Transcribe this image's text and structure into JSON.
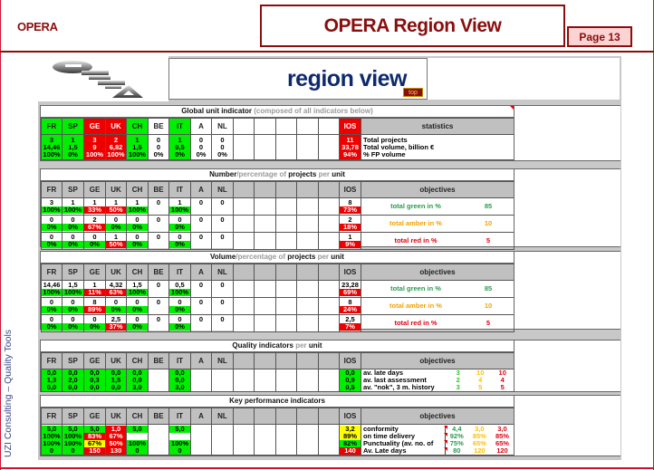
{
  "header": {
    "brand": "OPERA",
    "title": "OPERA Region View",
    "page": "Page 13"
  },
  "sidebar_credit": "UZI Consulting – Quality Tools",
  "banner": {
    "logo_alt": "OPERA logo",
    "title": "region view",
    "top_button": "top"
  },
  "units": [
    "FR",
    "SP",
    "GE",
    "UK",
    "CH",
    "BE",
    "IT",
    "A",
    "NL",
    "",
    "",
    "",
    "",
    ""
  ],
  "ios_label": "IOS",
  "global": {
    "title_bold": "Global unit indicator",
    "title_dim": " (composed of all indicators below)",
    "stats_header": "statistics",
    "header_colors": [
      "g",
      "g",
      "r",
      "r",
      "g",
      "w",
      "g",
      "w",
      "w",
      "w",
      "w",
      "w",
      "w",
      "w"
    ],
    "rows": [
      [
        "3",
        "1",
        "3",
        "2",
        "1",
        "0",
        "1",
        "0",
        "0",
        "",
        "",
        "",
        "",
        ""
      ],
      [
        "14,46",
        "1,5",
        "9",
        "6,82",
        "1,5",
        "0",
        "0,5",
        "0",
        "0",
        "",
        "",
        "",
        "",
        ""
      ],
      [
        "100%",
        "0%",
        "100%",
        "100%",
        "100%",
        "0%",
        "0%",
        "0%",
        "0%",
        "",
        "",
        "",
        "",
        ""
      ]
    ],
    "cell_colors": [
      "g",
      "g",
      "r",
      "r",
      "g",
      "w",
      "g",
      "w",
      "w",
      "w",
      "w",
      "w",
      "w",
      "w"
    ],
    "ios": [
      "11",
      "33,78",
      "94%"
    ],
    "stats_labels": [
      "Total projects",
      "Total volume, billion €",
      "% FP volume"
    ]
  },
  "number": {
    "title_parts": [
      "Number",
      "/percentage of ",
      "projects",
      " per ",
      "unit"
    ],
    "objectives_header": "objectives",
    "rows": [
      {
        "count": [
          "3",
          "1",
          "1",
          "1",
          "1",
          "0",
          "1",
          "0",
          "0"
        ],
        "pct": [
          "100%",
          "100%",
          "33%",
          "50%",
          "100%",
          "",
          "100%",
          "",
          ""
        ],
        "pct_colors": [
          "g",
          "g",
          "r",
          "r",
          "g",
          "w",
          "g",
          "w",
          "w"
        ]
      },
      {
        "count": [
          "0",
          "0",
          "2",
          "0",
          "0",
          "0",
          "0",
          "0",
          "0"
        ],
        "pct": [
          "0%",
          "0%",
          "67%",
          "0%",
          "0%",
          "",
          "0%",
          "",
          ""
        ],
        "pct_colors": [
          "g",
          "g",
          "r",
          "g",
          "g",
          "w",
          "g",
          "w",
          "w"
        ]
      },
      {
        "count": [
          "0",
          "0",
          "0",
          "1",
          "0",
          "0",
          "0",
          "0",
          "0"
        ],
        "pct": [
          "0%",
          "0%",
          "0%",
          "50%",
          "0%",
          "",
          "0%",
          "",
          ""
        ],
        "pct_colors": [
          "g",
          "g",
          "g",
          "r",
          "g",
          "w",
          "g",
          "w",
          "w"
        ]
      }
    ],
    "ios": [
      {
        "v": "8",
        "p": "73%"
      },
      {
        "v": "2",
        "p": "18%"
      },
      {
        "v": "1",
        "p": "9%"
      }
    ],
    "objectives": [
      {
        "label": "total green in %",
        "value": "85",
        "tone": "g"
      },
      {
        "label": "total amber in %",
        "value": "10",
        "tone": "a"
      },
      {
        "label": "total red in %",
        "value": "5",
        "tone": "r"
      }
    ]
  },
  "volume": {
    "title_parts": [
      "Volume",
      "/percentage of ",
      "projects",
      " per ",
      "unit"
    ],
    "objectives_header": "objectives",
    "rows": [
      {
        "count": [
          "14,46",
          "1,5",
          "1",
          "4,32",
          "1,5",
          "0",
          "0,5",
          "0",
          "0"
        ],
        "pct": [
          "100%",
          "100%",
          "11%",
          "63%",
          "100%",
          "",
          "100%",
          "",
          ""
        ],
        "pct_colors": [
          "g",
          "g",
          "r",
          "r",
          "g",
          "w",
          "g",
          "w",
          "w"
        ]
      },
      {
        "count": [
          "0",
          "0",
          "8",
          "0",
          "0",
          "0",
          "0",
          "0",
          "0"
        ],
        "pct": [
          "0%",
          "0%",
          "89%",
          "0%",
          "0%",
          "",
          "0%",
          "",
          ""
        ],
        "pct_colors": [
          "g",
          "g",
          "r",
          "g",
          "g",
          "w",
          "g",
          "w",
          "w"
        ]
      },
      {
        "count": [
          "0",
          "0",
          "0",
          "2,5",
          "0",
          "0",
          "0",
          "0",
          "0"
        ],
        "pct": [
          "0%",
          "0%",
          "0%",
          "37%",
          "0%",
          "",
          "0%",
          "",
          ""
        ],
        "pct_colors": [
          "g",
          "g",
          "g",
          "r",
          "g",
          "w",
          "g",
          "w",
          "w"
        ]
      }
    ],
    "ios": [
      {
        "v": "23,28",
        "p": "69%"
      },
      {
        "v": "8",
        "p": "24%"
      },
      {
        "v": "2,5",
        "p": "7%"
      }
    ],
    "objectives": [
      {
        "label": "total green in %",
        "value": "85",
        "tone": "g"
      },
      {
        "label": "total amber in %",
        "value": "10",
        "tone": "a"
      },
      {
        "label": "total red in %",
        "value": "5",
        "tone": "r"
      }
    ]
  },
  "quality": {
    "title_parts": [
      "Quality indicators",
      " per ",
      "unit"
    ],
    "objectives_header": "objectives",
    "cols": [
      [
        "0,0",
        "1,3",
        "0,0"
      ],
      [
        "0,0",
        "2,0",
        "0,0"
      ],
      [
        "0,0",
        "0,3",
        "0,0"
      ],
      [
        "0,0",
        "1,5",
        "0,0"
      ],
      [
        "0,0",
        "0,0",
        "3,0"
      ],
      [],
      [
        "0,0",
        "0,0",
        "3,0"
      ],
      [],
      []
    ],
    "col_colors": [
      "g",
      "g",
      "g",
      "g",
      "g",
      "w",
      "g",
      "w",
      "w"
    ],
    "ios": [
      "0,0",
      "0,9",
      "0,5"
    ],
    "objectives": [
      {
        "label": "av. late days",
        "green": "3",
        "amber": "10",
        "red": "10"
      },
      {
        "label": "av. last assessment",
        "green": "2",
        "amber": "4",
        "red": "4"
      },
      {
        "label": "av.  \"nok\", 3 m. history",
        "green": "3",
        "amber": "5",
        "red": "5"
      }
    ]
  },
  "kpi": {
    "title": "Key performance indicators",
    "objectives_header": "objectives",
    "rows": [
      {
        "vals": [
          "5,0",
          "5,0",
          "5,0",
          "1,0",
          "5,0",
          "",
          "5,0",
          "",
          ""
        ],
        "colors": [
          "g",
          "g",
          "g",
          "r",
          "g",
          "w",
          "g",
          "w",
          "w"
        ]
      },
      {
        "vals": [
          "100%",
          "100%",
          "83%",
          "67%",
          "",
          "",
          "",
          "",
          ""
        ],
        "colors": [
          "g",
          "g",
          "r",
          "r",
          "w",
          "w",
          "w",
          "w",
          "w"
        ]
      },
      {
        "vals": [
          "100%",
          "100%",
          "67%",
          "50%",
          "100%",
          "",
          "100%",
          "",
          ""
        ],
        "colors": [
          "g",
          "g",
          "y",
          "r",
          "g",
          "w",
          "g",
          "w",
          "w"
        ]
      },
      {
        "vals": [
          "0",
          "0",
          "150",
          "130",
          "0",
          "",
          "0",
          "",
          ""
        ],
        "colors": [
          "g",
          "g",
          "r",
          "r",
          "g",
          "w",
          "g",
          "w",
          "w"
        ]
      }
    ],
    "ios": [
      {
        "v": "3,2",
        "c": "y"
      },
      {
        "v": "89%",
        "c": "y"
      },
      {
        "v": "82%",
        "c": "g"
      },
      {
        "v": "140",
        "c": "r"
      }
    ],
    "objectives": [
      {
        "label": "conformity",
        "green": "4,4",
        "amber": "3,0",
        "red": "3,0"
      },
      {
        "label": "on time delivery",
        "green": "92%",
        "amber": "85%",
        "red": "85%"
      },
      {
        "label": "Punctuality (av. no. of",
        "green": "75%",
        "amber": "65%",
        "red": "65%"
      },
      {
        "label": "Av. Late days",
        "green": "80",
        "amber": "120",
        "red": "120"
      }
    ]
  },
  "colors": {
    "brand_dark_red": "#8b0d0d",
    "status_green": "#00ee00",
    "status_red": "#ee0000",
    "status_yellow": "#ffff00",
    "objective_green": "#2a9a50",
    "objective_amber": "#f5a000",
    "objective_red": "#e00010"
  }
}
